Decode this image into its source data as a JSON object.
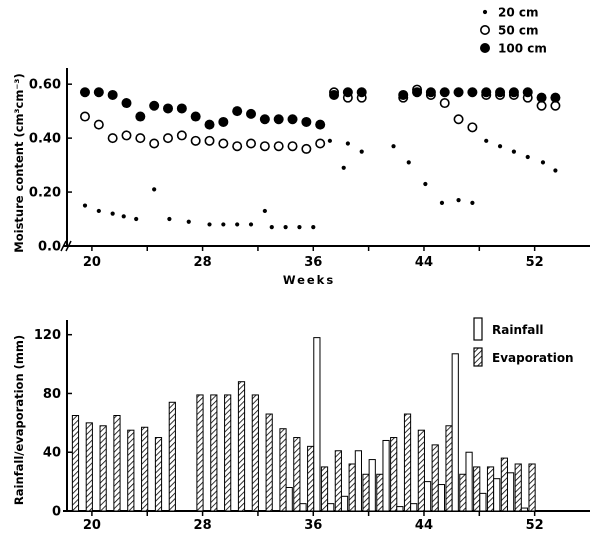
{
  "chart_data": [
    {
      "type": "scatter",
      "ylabel": "Moisture content (cm³cm⁻³)",
      "xlabel": "Weeks",
      "xlim": [
        18.2,
        56
      ],
      "ylim": [
        0,
        0.66
      ],
      "xticks": [
        "20",
        "28",
        "36",
        "44",
        "52"
      ],
      "yticks": [
        "0.0",
        "0.20",
        "0.40",
        "0.60"
      ],
      "series": [
        {
          "name": "20 cm",
          "marker": "small-dot",
          "points": [
            [
              19.5,
              0.15
            ],
            [
              20.5,
              0.13
            ],
            [
              21.5,
              0.12
            ],
            [
              22.3,
              0.11
            ],
            [
              23.2,
              0.1
            ],
            [
              24.5,
              0.21
            ],
            [
              25.6,
              0.1
            ],
            [
              27,
              0.09
            ],
            [
              28.5,
              0.08
            ],
            [
              29.5,
              0.08
            ],
            [
              30.5,
              0.08
            ],
            [
              31.5,
              0.08
            ],
            [
              32.5,
              0.13
            ],
            [
              33,
              0.07
            ],
            [
              34,
              0.07
            ],
            [
              35,
              0.07
            ],
            [
              36,
              0.07
            ],
            [
              37.2,
              0.39
            ],
            [
              38.2,
              0.29
            ],
            [
              38.5,
              0.38
            ],
            [
              39.5,
              0.35
            ],
            [
              41.8,
              0.37
            ],
            [
              42.9,
              0.31
            ],
            [
              44.1,
              0.23
            ],
            [
              45.3,
              0.16
            ],
            [
              46.5,
              0.17
            ],
            [
              47.5,
              0.16
            ],
            [
              48.5,
              0.39
            ],
            [
              49.5,
              0.37
            ],
            [
              50.5,
              0.35
            ],
            [
              51.5,
              0.33
            ],
            [
              52.6,
              0.31
            ],
            [
              53.5,
              0.28
            ]
          ]
        },
        {
          "name": "50 cm",
          "marker": "open-circle",
          "points": [
            [
              19.5,
              0.48
            ],
            [
              20.5,
              0.45
            ],
            [
              21.5,
              0.4
            ],
            [
              22.5,
              0.41
            ],
            [
              23.5,
              0.4
            ],
            [
              24.5,
              0.38
            ],
            [
              25.5,
              0.4
            ],
            [
              26.5,
              0.41
            ],
            [
              27.5,
              0.39
            ],
            [
              28.5,
              0.39
            ],
            [
              29.5,
              0.38
            ],
            [
              30.5,
              0.37
            ],
            [
              31.5,
              0.38
            ],
            [
              32.5,
              0.37
            ],
            [
              33.5,
              0.37
            ],
            [
              34.5,
              0.37
            ],
            [
              35.5,
              0.36
            ],
            [
              36.5,
              0.38
            ],
            [
              37.5,
              0.57
            ],
            [
              38.5,
              0.55
            ],
            [
              39.5,
              0.55
            ],
            [
              42.5,
              0.55
            ],
            [
              43.5,
              0.58
            ],
            [
              44.5,
              0.56
            ],
            [
              45.5,
              0.53
            ],
            [
              46.5,
              0.47
            ],
            [
              47.5,
              0.44
            ],
            [
              48.5,
              0.56
            ],
            [
              49.5,
              0.56
            ],
            [
              50.5,
              0.56
            ],
            [
              51.5,
              0.55
            ],
            [
              52.5,
              0.52
            ],
            [
              53.5,
              0.52
            ]
          ]
        },
        {
          "name": "100 cm",
          "marker": "filled-circle",
          "points": [
            [
              19.5,
              0.57
            ],
            [
              20.5,
              0.57
            ],
            [
              21.5,
              0.56
            ],
            [
              22.5,
              0.53
            ],
            [
              23.5,
              0.48
            ],
            [
              24.5,
              0.52
            ],
            [
              25.5,
              0.51
            ],
            [
              26.5,
              0.51
            ],
            [
              27.5,
              0.48
            ],
            [
              28.5,
              0.45
            ],
            [
              29.5,
              0.46
            ],
            [
              30.5,
              0.5
            ],
            [
              31.5,
              0.49
            ],
            [
              32.5,
              0.47
            ],
            [
              33.5,
              0.47
            ],
            [
              34.5,
              0.47
            ],
            [
              35.5,
              0.46
            ],
            [
              36.5,
              0.45
            ],
            [
              37.5,
              0.56
            ],
            [
              38.5,
              0.57
            ],
            [
              39.5,
              0.57
            ],
            [
              42.5,
              0.56
            ],
            [
              43.5,
              0.57
            ],
            [
              44.5,
              0.57
            ],
            [
              45.5,
              0.57
            ],
            [
              46.5,
              0.57
            ],
            [
              47.5,
              0.57
            ],
            [
              48.5,
              0.57
            ],
            [
              49.5,
              0.57
            ],
            [
              50.5,
              0.57
            ],
            [
              51.5,
              0.57
            ],
            [
              52.5,
              0.55
            ],
            [
              53.5,
              0.55
            ]
          ]
        }
      ],
      "legend": "top-right"
    },
    {
      "type": "bar",
      "ylabel": "Rainfall/evaporation (mm)",
      "xlim": [
        18.2,
        56
      ],
      "ylim": [
        0,
        130
      ],
      "xticks": [
        "20",
        "28",
        "36",
        "44",
        "52"
      ],
      "yticks": [
        "0",
        "40",
        "80",
        "120"
      ],
      "x": [
        19,
        20,
        21,
        22,
        23,
        24,
        25,
        26,
        27,
        28,
        29,
        30,
        31,
        32,
        33,
        34,
        35,
        36,
        37,
        38,
        39,
        40,
        41,
        42,
        43,
        44,
        45,
        46,
        47,
        48,
        49,
        50,
        51,
        52
      ],
      "series": [
        {
          "name": "Rainfall",
          "style": "open",
          "values": [
            0,
            0,
            0,
            0,
            0,
            0,
            0,
            0,
            0,
            0,
            0,
            0,
            0,
            0,
            0,
            16,
            5,
            118,
            5,
            10,
            41,
            35,
            48,
            3,
            5,
            20,
            18,
            107,
            40,
            12,
            22,
            26,
            2,
            0
          ]
        },
        {
          "name": "Evaporation",
          "style": "hatched",
          "values": [
            65,
            60,
            58,
            65,
            55,
            57,
            50,
            74,
            0,
            79,
            79,
            79,
            88,
            79,
            66,
            56,
            50,
            44,
            30,
            41,
            32,
            25,
            25,
            50,
            66,
            55,
            45,
            58,
            25,
            30,
            30,
            36,
            32,
            32
          ]
        }
      ],
      "legend": "top-right"
    }
  ]
}
